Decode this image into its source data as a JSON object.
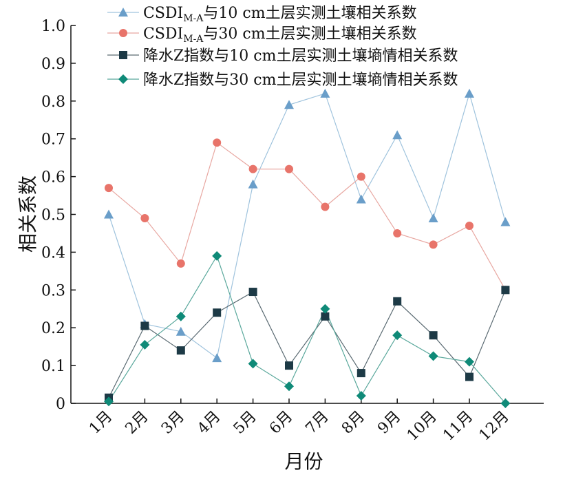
{
  "chart_data": {
    "type": "line",
    "xlabel": "月份",
    "ylabel": "相关系数",
    "ylim": [
      0,
      1.0
    ],
    "yticks": [
      "0",
      "0.1",
      "0.2",
      "0.3",
      "0.4",
      "0.5",
      "0.6",
      "0.7",
      "0.8",
      "0.9",
      "1.0"
    ],
    "categories": [
      "1月",
      "2月",
      "3月",
      "4月",
      "5月",
      "6月",
      "7月",
      "8月",
      "9月",
      "10月",
      "11月",
      "12月"
    ],
    "legend_position": "top",
    "grid": false,
    "series": [
      {
        "name_main": "CSDI",
        "name_sub": "M-A",
        "name_rest": "与10 cm土层实测土壤相关系数",
        "marker": "triangle",
        "color": "#6a9ec9",
        "line_color": "#9fc3dd",
        "values": [
          0.5,
          0.21,
          0.19,
          0.12,
          0.58,
          0.79,
          0.82,
          0.54,
          0.71,
          0.49,
          0.82,
          0.48
        ]
      },
      {
        "name_main": "CSDI",
        "name_sub": "M-A",
        "name_rest": "与30 cm土层实测土壤相关系数",
        "marker": "circle",
        "color": "#e8746a",
        "line_color": "#e8a7a1",
        "values": [
          0.57,
          0.49,
          0.37,
          0.69,
          0.62,
          0.62,
          0.52,
          0.6,
          0.45,
          0.42,
          0.47,
          0.3
        ]
      },
      {
        "name_main": "降水Z指数与10 cm土层实测土壤墒情相关系数",
        "name_sub": "",
        "name_rest": "",
        "marker": "square",
        "color": "#1d3a46",
        "line_color": "#5a6a72",
        "values": [
          0.015,
          0.205,
          0.14,
          0.24,
          0.295,
          0.1,
          0.23,
          0.08,
          0.27,
          0.18,
          0.07,
          0.3
        ]
      },
      {
        "name_main": "降水Z指数与30 cm土层实测土壤墒情相关系数",
        "name_sub": "",
        "name_rest": "",
        "marker": "diamond",
        "color": "#0f8a78",
        "line_color": "#5aa89c",
        "values": [
          0.005,
          0.155,
          0.23,
          0.39,
          0.105,
          0.045,
          0.25,
          0.02,
          0.18,
          0.125,
          0.11,
          0.0
        ]
      }
    ]
  }
}
